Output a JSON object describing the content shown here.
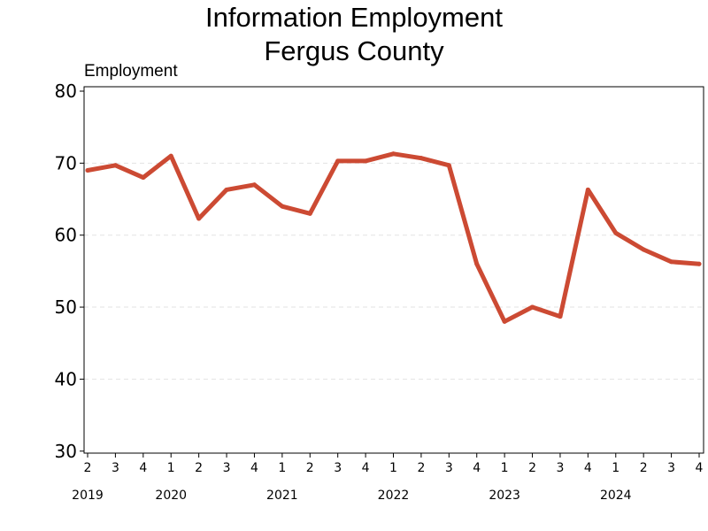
{
  "chart_data": {
    "type": "line",
    "title_line1": "Information Employment",
    "title_line2": "Fergus County",
    "ylabel": "Employment",
    "xlabel": "",
    "ylim": [
      30,
      80
    ],
    "yticks": [
      "30",
      "40",
      "50",
      "60",
      "70",
      "80"
    ],
    "grid": "horizontal dashed",
    "line_color": "#cc4a33",
    "x": [
      "2019 Q2",
      "2019 Q3",
      "2019 Q4",
      "2020 Q1",
      "2020 Q2",
      "2020 Q3",
      "2020 Q4",
      "2021 Q1",
      "2021 Q2",
      "2021 Q3",
      "2021 Q4",
      "2022 Q1",
      "2022 Q2",
      "2022 Q3",
      "2022 Q4",
      "2023 Q1",
      "2023 Q2",
      "2023 Q3",
      "2023 Q4",
      "2024 Q1",
      "2024 Q2",
      "2024 Q3",
      "2024 Q4"
    ],
    "quarter_labels": [
      "2",
      "3",
      "4",
      "1",
      "2",
      "3",
      "4",
      "1",
      "2",
      "3",
      "4",
      "1",
      "2",
      "3",
      "4",
      "1",
      "2",
      "3",
      "4",
      "1",
      "2",
      "3",
      "4"
    ],
    "year_labels": [
      {
        "label": "2019",
        "index": 0
      },
      {
        "label": "2020",
        "index": 3
      },
      {
        "label": "2021",
        "index": 7
      },
      {
        "label": "2022",
        "index": 11
      },
      {
        "label": "2023",
        "index": 15
      },
      {
        "label": "2024",
        "index": 19
      }
    ],
    "values": [
      69,
      69.7,
      68,
      71,
      62.3,
      66.3,
      67,
      64,
      63,
      70.3,
      70.3,
      71.3,
      70.7,
      69.7,
      56,
      48,
      50,
      48.7,
      66.3,
      60.3,
      58,
      56.3,
      56
    ]
  }
}
